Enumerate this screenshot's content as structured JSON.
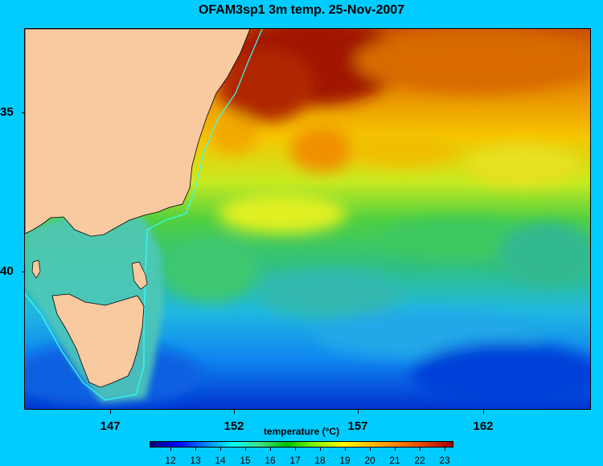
{
  "title": "OFAM3sp1 3m temp. 25-Nov-2007",
  "map": {
    "y_ticks": [
      "35",
      "40"
    ],
    "x_ticks": [
      "147",
      "152",
      "157",
      "162"
    ],
    "colors": {
      "land": "#f9c9a0",
      "coast": "#000000",
      "shelf_contour": "#33ffff"
    }
  },
  "colorbar": {
    "label": "temperature (°C)",
    "ticks": [
      "12",
      "13",
      "14",
      "15",
      "16",
      "17",
      "18",
      "19",
      "20",
      "21",
      "22",
      "23"
    ],
    "colors": [
      "#00007f",
      "#0000ff",
      "#0080ff",
      "#00ffff",
      "#40e080",
      "#00c000",
      "#80ff00",
      "#ffff00",
      "#ffc000",
      "#ff8000",
      "#e04000",
      "#a00000"
    ]
  }
}
